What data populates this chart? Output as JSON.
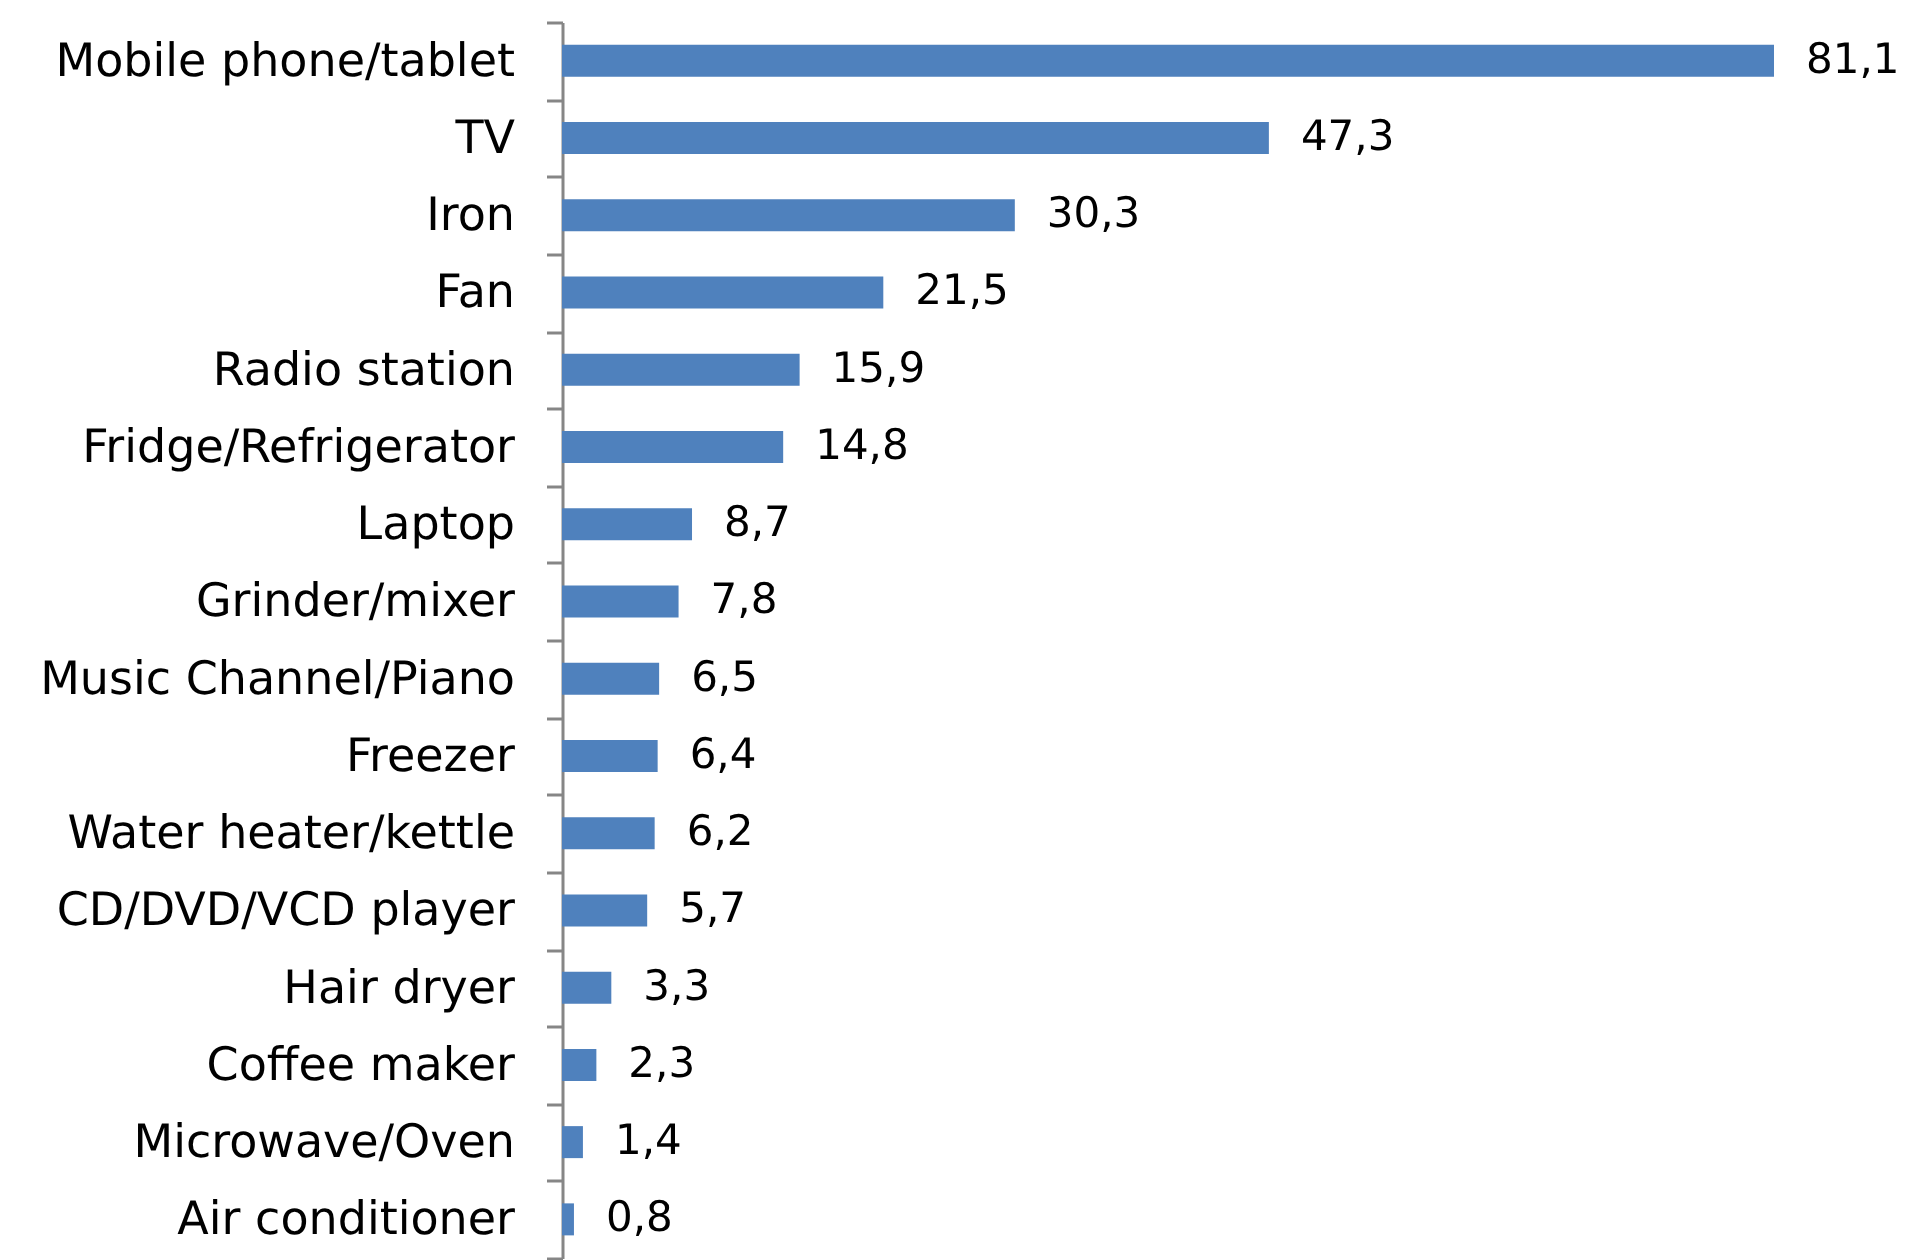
{
  "chart_data": {
    "type": "bar",
    "orientation": "horizontal",
    "color": "#4f81bd",
    "categories": [
      "Mobile phone/tablet",
      "TV",
      "Iron",
      "Fan",
      "Radio station",
      "Fridge/Refrigerator",
      "Laptop",
      "Grinder/mixer",
      "Music Channel/Piano",
      "Freezer",
      "Water heater/kettle",
      "CD/DVD/VCD player",
      "Hair dryer",
      "Coffee maker",
      "Microwave/Oven",
      "Air conditioner"
    ],
    "values": [
      81.1,
      47.3,
      30.3,
      21.5,
      15.9,
      14.8,
      8.7,
      7.8,
      6.5,
      6.4,
      6.2,
      5.7,
      3.3,
      2.3,
      1.4,
      0.8
    ],
    "value_labels": [
      "81,1",
      "47,3",
      "30,3",
      "21,5",
      "15,9",
      "14,8",
      "8,7",
      "7,8",
      "6,5",
      "6,4",
      "6,2",
      "5,7",
      "3,3",
      "2,3",
      "1,4",
      "0,8"
    ]
  }
}
